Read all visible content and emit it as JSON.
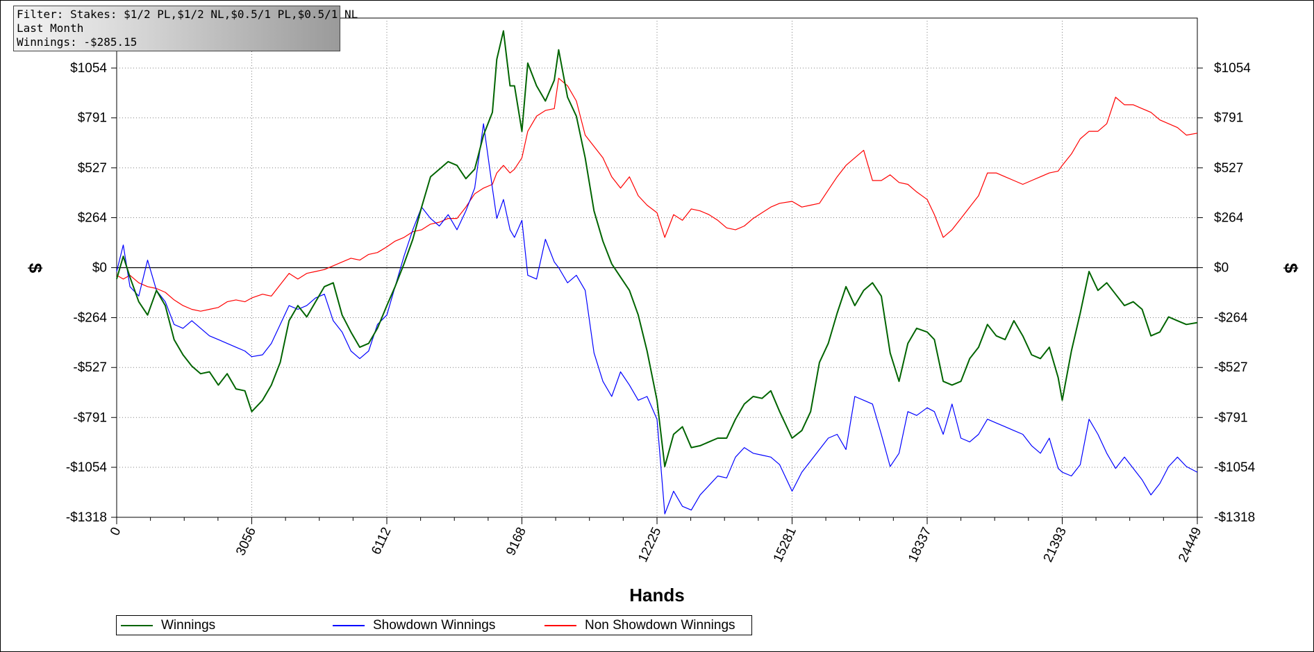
{
  "filter_box": {
    "line1": "Filter: Stakes: $1/2 PL,$1/2 NL,$0.5/1 PL,$0.5/1 NL",
    "line2": "Last Month",
    "line3": "Winnings: -$285.15"
  },
  "colors": {
    "winnings": "#006400",
    "showdown": "#0000ff",
    "non_showdown": "#ff0000",
    "grid": "#808080",
    "zero_line": "#000000"
  },
  "chart_data": {
    "type": "line",
    "xlabel": "Hands",
    "ylabel": "$",
    "xlim": [
      0,
      24449
    ],
    "ylim": [
      -1318,
      1318
    ],
    "x_ticks": [
      0,
      3056,
      6112,
      9168,
      12225,
      15281,
      18337,
      21393,
      24449
    ],
    "x_tick_labels": [
      "0",
      "3056",
      "6112",
      "9168",
      "12225",
      "15281",
      "18337",
      "21393",
      "24449"
    ],
    "y_ticks": [
      -1318,
      -1054,
      -791,
      -527,
      -264,
      0,
      264,
      527,
      791,
      1054
    ],
    "y_tick_labels": [
      "-$1318",
      "-$1054",
      "-$791",
      "-$527",
      "-$264",
      "$0",
      "$264",
      "$527",
      "$791",
      "$1054"
    ],
    "grid": true,
    "legend_position": "bottom",
    "series": [
      {
        "name": "Winnings",
        "x": [
          0,
          150,
          300,
          500,
          700,
          900,
          1100,
          1300,
          1500,
          1700,
          1900,
          2100,
          2300,
          2500,
          2700,
          2900,
          3056,
          3300,
          3500,
          3700,
          3900,
          4100,
          4300,
          4500,
          4700,
          4900,
          5100,
          5300,
          5500,
          5700,
          5900,
          6112,
          6300,
          6500,
          6700,
          6900,
          7100,
          7300,
          7500,
          7700,
          7900,
          8100,
          8300,
          8500,
          8600,
          8750,
          8900,
          9000,
          9168,
          9300,
          9500,
          9700,
          9900,
          10000,
          10200,
          10400,
          10600,
          10800,
          11000,
          11200,
          11400,
          11600,
          11800,
          12000,
          12225,
          12400,
          12600,
          12800,
          13000,
          13200,
          13400,
          13600,
          13800,
          14000,
          14200,
          14400,
          14600,
          14800,
          15000,
          15281,
          15500,
          15700,
          15900,
          16100,
          16300,
          16500,
          16700,
          16900,
          17100,
          17300,
          17500,
          17700,
          17900,
          18100,
          18337,
          18500,
          18700,
          18900,
          19100,
          19300,
          19500,
          19700,
          19900,
          20100,
          20300,
          20500,
          20700,
          20900,
          21100,
          21300,
          21393,
          21600,
          21800,
          22000,
          22200,
          22400,
          22600,
          22800,
          23000,
          23200,
          23400,
          23600,
          23800,
          24000,
          24200,
          24449
        ],
        "y": [
          -60,
          60,
          -50,
          -180,
          -250,
          -120,
          -200,
          -380,
          -460,
          -520,
          -560,
          -550,
          -620,
          -560,
          -640,
          -650,
          -760,
          -700,
          -620,
          -500,
          -280,
          -200,
          -260,
          -180,
          -100,
          -80,
          -250,
          -340,
          -420,
          -400,
          -320,
          -200,
          -100,
          20,
          150,
          320,
          480,
          520,
          560,
          540,
          470,
          520,
          700,
          820,
          1100,
          1250,
          960,
          960,
          720,
          1080,
          960,
          880,
          990,
          1150,
          900,
          800,
          580,
          300,
          140,
          20,
          -50,
          -120,
          -250,
          -440,
          -700,
          -1050,
          -880,
          -840,
          -950,
          -940,
          -920,
          -900,
          -900,
          -800,
          -720,
          -680,
          -690,
          -650,
          -760,
          -900,
          -860,
          -760,
          -500,
          -400,
          -240,
          -100,
          -200,
          -120,
          -80,
          -150,
          -450,
          -600,
          -400,
          -320,
          -340,
          -380,
          -600,
          -620,
          -600,
          -480,
          -420,
          -300,
          -360,
          -380,
          -280,
          -360,
          -460,
          -480,
          -420,
          -580,
          -700,
          -440,
          -240,
          -20,
          -120,
          -80,
          -140,
          -200,
          -180,
          -220,
          -360,
          -340,
          -260,
          -280,
          -300,
          -290
        ]
      },
      {
        "name": "Showdown Winnings",
        "x": [
          0,
          150,
          300,
          500,
          700,
          900,
          1100,
          1300,
          1500,
          1700,
          1900,
          2100,
          2300,
          2500,
          2700,
          2900,
          3056,
          3300,
          3500,
          3700,
          3900,
          4100,
          4300,
          4500,
          4700,
          4900,
          5100,
          5300,
          5500,
          5700,
          5900,
          6112,
          6300,
          6500,
          6700,
          6900,
          7100,
          7300,
          7500,
          7700,
          7900,
          8100,
          8300,
          8500,
          8600,
          8750,
          8900,
          9000,
          9168,
          9300,
          9500,
          9700,
          9900,
          10000,
          10200,
          10400,
          10600,
          10800,
          11000,
          11200,
          11400,
          11600,
          11800,
          12000,
          12225,
          12400,
          12600,
          12800,
          13000,
          13200,
          13400,
          13600,
          13800,
          14000,
          14200,
          14400,
          14600,
          14800,
          15000,
          15281,
          15500,
          15700,
          15900,
          16100,
          16300,
          16500,
          16700,
          16900,
          17100,
          17300,
          17500,
          17700,
          17900,
          18100,
          18337,
          18500,
          18700,
          18900,
          19100,
          19300,
          19500,
          19700,
          19900,
          20100,
          20300,
          20500,
          20700,
          20900,
          21100,
          21300,
          21393,
          21600,
          21800,
          22000,
          22200,
          22400,
          22600,
          22800,
          23000,
          23200,
          23400,
          23600,
          23800,
          24000,
          24200,
          24449
        ],
        "y": [
          -20,
          120,
          -100,
          -150,
          40,
          -120,
          -180,
          -300,
          -320,
          -280,
          -320,
          -360,
          -380,
          -400,
          -420,
          -440,
          -470,
          -460,
          -400,
          -300,
          -200,
          -220,
          -200,
          -160,
          -140,
          -280,
          -340,
          -440,
          -480,
          -440,
          -300,
          -250,
          -100,
          60,
          200,
          320,
          260,
          220,
          280,
          200,
          300,
          420,
          760,
          420,
          260,
          360,
          200,
          160,
          250,
          -40,
          -60,
          150,
          30,
          0,
          -80,
          -40,
          -120,
          -450,
          -600,
          -680,
          -550,
          -620,
          -700,
          -680,
          -800,
          -1300,
          -1180,
          -1260,
          -1280,
          -1200,
          -1150,
          -1100,
          -1110,
          -1000,
          -950,
          -980,
          -990,
          -1000,
          -1040,
          -1180,
          -1080,
          -1020,
          -960,
          -900,
          -880,
          -960,
          -680,
          -700,
          -720,
          -880,
          -1050,
          -980,
          -760,
          -780,
          -740,
          -760,
          -880,
          -720,
          -900,
          -920,
          -880,
          -800,
          -820,
          -840,
          -860,
          -880,
          -940,
          -980,
          -900,
          -1060,
          -1080,
          -1100,
          -1040,
          -800,
          -880,
          -980,
          -1060,
          -1000,
          -1060,
          -1120,
          -1200,
          -1140,
          -1050,
          -1000,
          -1050,
          -1080
        ]
      },
      {
        "name": "Non Showdown Winnings",
        "x": [
          0,
          150,
          300,
          500,
          700,
          900,
          1100,
          1300,
          1500,
          1700,
          1900,
          2100,
          2300,
          2500,
          2700,
          2900,
          3056,
          3300,
          3500,
          3700,
          3900,
          4100,
          4300,
          4500,
          4700,
          4900,
          5100,
          5300,
          5500,
          5700,
          5900,
          6112,
          6300,
          6500,
          6700,
          6900,
          7100,
          7300,
          7500,
          7700,
          7900,
          8100,
          8300,
          8500,
          8600,
          8750,
          8900,
          9000,
          9168,
          9300,
          9500,
          9700,
          9900,
          10000,
          10200,
          10400,
          10600,
          10800,
          11000,
          11200,
          11400,
          11600,
          11800,
          12000,
          12225,
          12400,
          12600,
          12800,
          13000,
          13200,
          13400,
          13600,
          13800,
          14000,
          14200,
          14400,
          14600,
          14800,
          15000,
          15281,
          15500,
          15700,
          15900,
          16100,
          16300,
          16500,
          16700,
          16900,
          17100,
          17300,
          17500,
          17700,
          17900,
          18100,
          18337,
          18500,
          18700,
          18900,
          19100,
          19300,
          19500,
          19700,
          19900,
          20100,
          20300,
          20500,
          20700,
          20900,
          21100,
          21300,
          21393,
          21600,
          21800,
          22000,
          22200,
          22400,
          22600,
          22800,
          23000,
          23200,
          23400,
          23600,
          23800,
          24000,
          24200,
          24449
        ],
        "y": [
          -40,
          -60,
          -40,
          -80,
          -100,
          -110,
          -130,
          -170,
          -200,
          -220,
          -230,
          -220,
          -210,
          -180,
          -170,
          -180,
          -160,
          -140,
          -150,
          -90,
          -30,
          -60,
          -30,
          -20,
          -10,
          10,
          30,
          50,
          40,
          70,
          80,
          110,
          140,
          160,
          190,
          200,
          230,
          240,
          260,
          260,
          320,
          390,
          420,
          440,
          500,
          540,
          500,
          520,
          580,
          720,
          800,
          830,
          840,
          1000,
          960,
          880,
          700,
          640,
          580,
          480,
          420,
          480,
          380,
          330,
          290,
          160,
          280,
          250,
          310,
          300,
          280,
          250,
          210,
          200,
          220,
          260,
          290,
          320,
          340,
          350,
          320,
          330,
          340,
          410,
          480,
          540,
          580,
          620,
          460,
          460,
          490,
          450,
          440,
          400,
          360,
          280,
          160,
          200,
          260,
          320,
          380,
          500,
          500,
          480,
          460,
          440,
          460,
          480,
          500,
          510,
          540,
          600,
          680,
          720,
          720,
          760,
          900,
          860,
          860,
          840,
          820,
          780,
          760,
          740,
          700,
          710
        ]
      }
    ]
  },
  "legend": {
    "winnings": "Winnings",
    "showdown": "Showdown Winnings",
    "non_showdown": "Non Showdown Winnings"
  }
}
